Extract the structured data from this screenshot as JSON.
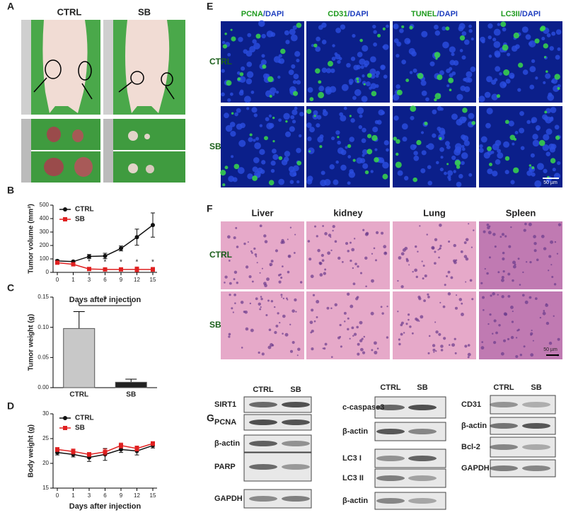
{
  "panel_labels": [
    "A",
    "B",
    "C",
    "D",
    "E",
    "F",
    "G"
  ],
  "panel_a": {
    "groups": [
      "CTRL",
      "SB"
    ]
  },
  "chart_data": [
    {
      "type": "line",
      "y_label": "Tumor volume (mm³)",
      "x_label": "Days after injection",
      "categories": [
        "0",
        "1",
        "3",
        "6",
        "9",
        "12",
        "15"
      ],
      "series": [
        {
          "name": "CTRL",
          "color": "#111111",
          "values": [
            85,
            80,
            118,
            122,
            178,
            262,
            352
          ],
          "errors": [
            8,
            5,
            15,
            20,
            18,
            60,
            90
          ]
        },
        {
          "name": "SB",
          "color": "#e02020",
          "values": [
            72,
            60,
            25,
            22,
            22,
            22,
            22
          ],
          "errors": [
            10,
            5,
            5,
            5,
            5,
            18,
            15
          ]
        }
      ],
      "annotations": [
        {
          "text": "*",
          "at": "3"
        },
        {
          "text": "*",
          "at": "6"
        },
        {
          "text": "*",
          "at": "9"
        },
        {
          "text": "*",
          "at": "12"
        },
        {
          "text": "*",
          "at": "15"
        }
      ],
      "ylim": [
        0,
        500
      ],
      "yticks": [
        0,
        100,
        200,
        300,
        400,
        500
      ]
    },
    {
      "type": "bar",
      "y_label": "Tumor weight (g)",
      "categories": [
        "CTRL",
        "SB"
      ],
      "values": [
        0.098,
        0.009
      ],
      "errors": [
        0.028,
        0.005
      ],
      "colors": [
        "#c8c8c8",
        "#222222"
      ],
      "annotations": [
        {
          "text": "*",
          "between": [
            "CTRL",
            "SB"
          ]
        }
      ],
      "ylim": [
        0,
        0.15
      ],
      "yticks": [
        {
          "value": 0,
          "label": "0.00"
        },
        {
          "value": 0.05,
          "label": "0.05"
        },
        {
          "value": 0.1,
          "label": "0.10"
        },
        {
          "value": 0.15,
          "label": "0.15"
        }
      ]
    },
    {
      "type": "line",
      "y_label": "Body weight (g)",
      "x_label": "Days after injection",
      "categories": [
        "0",
        "1",
        "3",
        "6",
        "9",
        "12",
        "15"
      ],
      "series": [
        {
          "name": "CTRL",
          "color": "#111111",
          "values": [
            22.2,
            21.8,
            21.2,
            21.8,
            22.8,
            22.5,
            23.6
          ],
          "errors": [
            0.5,
            0.5,
            0.8,
            1.2,
            0.6,
            0.8,
            0.5
          ]
        },
        {
          "name": "SB",
          "color": "#e02020",
          "values": [
            22.8,
            22.4,
            21.8,
            22.3,
            23.6,
            23.0,
            24.0
          ],
          "errors": [
            0.4,
            0.5,
            0.4,
            0.6,
            0.5,
            0.5,
            0.4
          ]
        }
      ],
      "ylim": [
        15,
        30
      ],
      "yticks": [
        15,
        20,
        25,
        30
      ]
    }
  ],
  "panel_e": {
    "markers": [
      "PCNA",
      "CD31",
      "TUNEL",
      "LC3II"
    ],
    "counterstain": "/DAPI",
    "rows": [
      "CTRL",
      "SB"
    ],
    "scale_bar": "50 µm"
  },
  "panel_f": {
    "tissues": [
      "Liver",
      "kidney",
      "Lung",
      "Spleen"
    ],
    "rows": [
      "CTRL",
      "SB"
    ],
    "scale_bar": "50 µm"
  },
  "panel_g": {
    "blots": [
      {
        "lanes": [
          "CTRL",
          "SB"
        ],
        "proteins": [
          "SIRT1",
          "PCNA",
          "β-actin",
          "PARP",
          "GAPDH"
        ]
      },
      {
        "lanes": [
          "CTRL",
          "SB"
        ],
        "proteins": [
          "c-caspase3",
          "β-actin",
          "LC3 I",
          "LC3 II",
          "β-actin"
        ]
      },
      {
        "lanes": [
          "CTRL",
          "SB"
        ],
        "proteins": [
          "CD31",
          "β-actin",
          "Bcl-2",
          "GAPDH"
        ]
      }
    ]
  }
}
